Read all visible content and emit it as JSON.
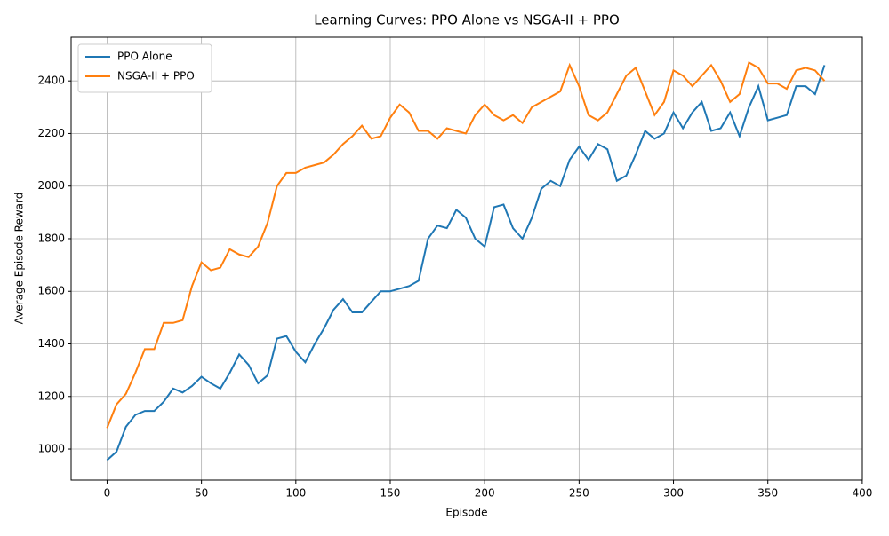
{
  "chart_data": {
    "type": "line",
    "title": "Learning Curves: PPO Alone vs NSGA-II + PPO",
    "x_label": "Episode",
    "y_label": "Average Episode Reward",
    "x": [
      0,
      5,
      10,
      15,
      20,
      25,
      30,
      35,
      40,
      45,
      50,
      55,
      60,
      65,
      70,
      75,
      80,
      85,
      90,
      95,
      100,
      105,
      110,
      115,
      120,
      125,
      130,
      135,
      140,
      145,
      150,
      155,
      160,
      165,
      170,
      175,
      180,
      185,
      190,
      195,
      200,
      205,
      210,
      215,
      220,
      225,
      230,
      235,
      240,
      245,
      250,
      255,
      260,
      265,
      270,
      275,
      280,
      285,
      290,
      295,
      300,
      305,
      310,
      315,
      320,
      325,
      330,
      335,
      340,
      345,
      350,
      355,
      360,
      365,
      370,
      375,
      380
    ],
    "series": [
      {
        "name": "PPO Alone",
        "color": "#1f77b4",
        "values": [
          958,
          990,
          1085,
          1130,
          1145,
          1145,
          1180,
          1230,
          1215,
          1240,
          1275,
          1250,
          1230,
          1290,
          1360,
          1320,
          1250,
          1280,
          1420,
          1430,
          1370,
          1330,
          1400,
          1460,
          1530,
          1570,
          1520,
          1520,
          1560,
          1600,
          1600,
          1610,
          1620,
          1640,
          1800,
          1850,
          1840,
          1910,
          1880,
          1800,
          1770,
          1920,
          1930,
          1840,
          1800,
          1880,
          1990,
          2020,
          2000,
          2100,
          2150,
          2100,
          2160,
          2140,
          2020,
          2040,
          2120,
          2210,
          2180,
          2200,
          2280,
          2220,
          2280,
          2320,
          2210,
          2220,
          2280,
          2190,
          2300,
          2380,
          2250,
          2260,
          2270,
          2380,
          2380,
          2350,
          2460
        ]
      },
      {
        "name": "NSGA-II + PPO",
        "color": "#ff7f0e",
        "values": [
          1080,
          1170,
          1210,
          1290,
          1380,
          1380,
          1480,
          1480,
          1490,
          1620,
          1710,
          1680,
          1690,
          1760,
          1740,
          1730,
          1770,
          1860,
          2000,
          2050,
          2050,
          2070,
          2080,
          2090,
          2120,
          2160,
          2190,
          2230,
          2180,
          2190,
          2260,
          2310,
          2280,
          2210,
          2210,
          2180,
          2220,
          2210,
          2200,
          2270,
          2310,
          2270,
          2250,
          2270,
          2240,
          2300,
          2320,
          2340,
          2360,
          2460,
          2380,
          2270,
          2250,
          2280,
          2350,
          2420,
          2450,
          2360,
          2270,
          2320,
          2440,
          2420,
          2380,
          2420,
          2460,
          2400,
          2320,
          2350,
          2470,
          2450,
          2390,
          2390,
          2370,
          2440,
          2450,
          2440,
          2400
        ]
      }
    ],
    "xlim": [
      -19.05,
      400.05
    ],
    "ylim": [
      882,
      2566
    ],
    "xticks": [
      0,
      50,
      100,
      150,
      200,
      250,
      300,
      350,
      400
    ],
    "yticks": [
      1000,
      1200,
      1400,
      1600,
      1800,
      2000,
      2200,
      2400
    ],
    "grid": true,
    "legend": "upper left"
  }
}
